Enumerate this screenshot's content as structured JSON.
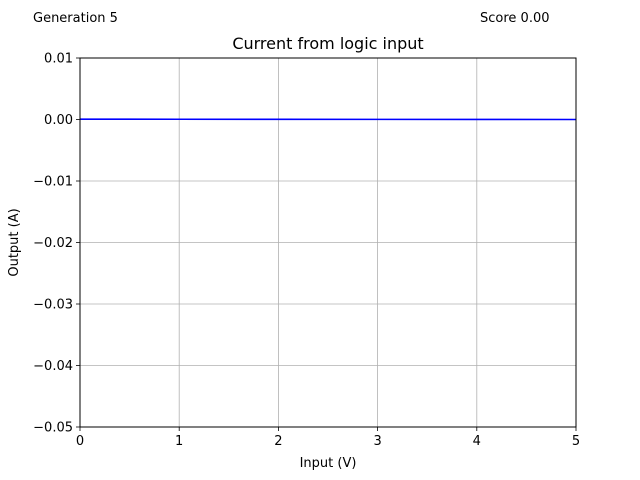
{
  "header": {
    "generation": "Generation 5",
    "score": "Score 0.00"
  },
  "chart_data": {
    "type": "line",
    "title": "Current from logic input",
    "xlabel": "Input (V)",
    "ylabel": "Output (A)",
    "xlim": [
      0,
      5
    ],
    "ylim": [
      -0.05,
      0.01
    ],
    "xticks": [
      0,
      1,
      2,
      3,
      4,
      5
    ],
    "xtick_labels": [
      "0",
      "1",
      "2",
      "3",
      "4",
      "5"
    ],
    "yticks": [
      0.01,
      0.0,
      -0.01,
      -0.02,
      -0.03,
      -0.04,
      -0.05
    ],
    "ytick_labels": [
      "0.01",
      "0.00",
      "−0.01",
      "−0.02",
      "−0.03",
      "−0.04",
      "−0.05"
    ],
    "grid": true,
    "series": [
      {
        "color": "#0000ff",
        "x": [
          0,
          1,
          2,
          3,
          4,
          5
        ],
        "y": [
          5e-05,
          4e-05,
          3e-05,
          2e-05,
          1e-05,
          0.0
        ]
      }
    ]
  }
}
